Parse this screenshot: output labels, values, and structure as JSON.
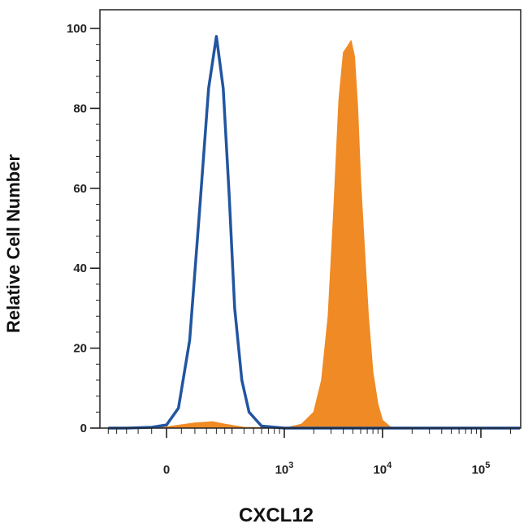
{
  "chart_data": {
    "type": "area",
    "xlabel": "CXCL12",
    "ylabel": "Relative Cell Number",
    "x_scale": "biexponential",
    "ylim": [
      0,
      100
    ],
    "y_ticks": [
      0,
      20,
      40,
      60,
      80,
      100
    ],
    "x_ticks": [
      {
        "value": 0,
        "label": "0",
        "exponent": ""
      },
      {
        "value": 1000,
        "label": "10",
        "exponent": "3"
      },
      {
        "value": 10000,
        "label": "10",
        "exponent": "4"
      },
      {
        "value": 100000,
        "label": "10",
        "exponent": "5"
      }
    ],
    "xlim": [
      -250,
      250000
    ],
    "grid": false,
    "series": [
      {
        "style": "filled",
        "color": "#f08a24",
        "x": [
          -150,
          0,
          100,
          180,
          250,
          400,
          800,
          1100,
          1500,
          2000,
          2400,
          2800,
          3200,
          3600,
          4000,
          4400,
          4800,
          5200,
          5600,
          6000,
          6600,
          7200,
          8000,
          9000,
          10000,
          12000,
          15000
        ],
        "y": [
          0,
          0.3,
          1.3,
          1.6,
          1,
          0.2,
          0.1,
          0.2,
          1,
          4,
          12,
          28,
          55,
          82,
          94,
          95.5,
          97,
          93,
          80,
          62,
          44,
          28,
          14,
          6,
          2,
          0.3,
          0
        ]
      },
      {
        "style": "line",
        "color": "#2255a0",
        "x": [
          -250,
          -150,
          -50,
          0,
          40,
          80,
          120,
          160,
          200,
          240,
          280,
          320,
          380,
          450,
          600,
          1000,
          250000
        ],
        "y": [
          0,
          0,
          0.2,
          0.8,
          5,
          22,
          55,
          85,
          98,
          85,
          58,
          30,
          12,
          4,
          0.5,
          0,
          0
        ]
      }
    ]
  }
}
